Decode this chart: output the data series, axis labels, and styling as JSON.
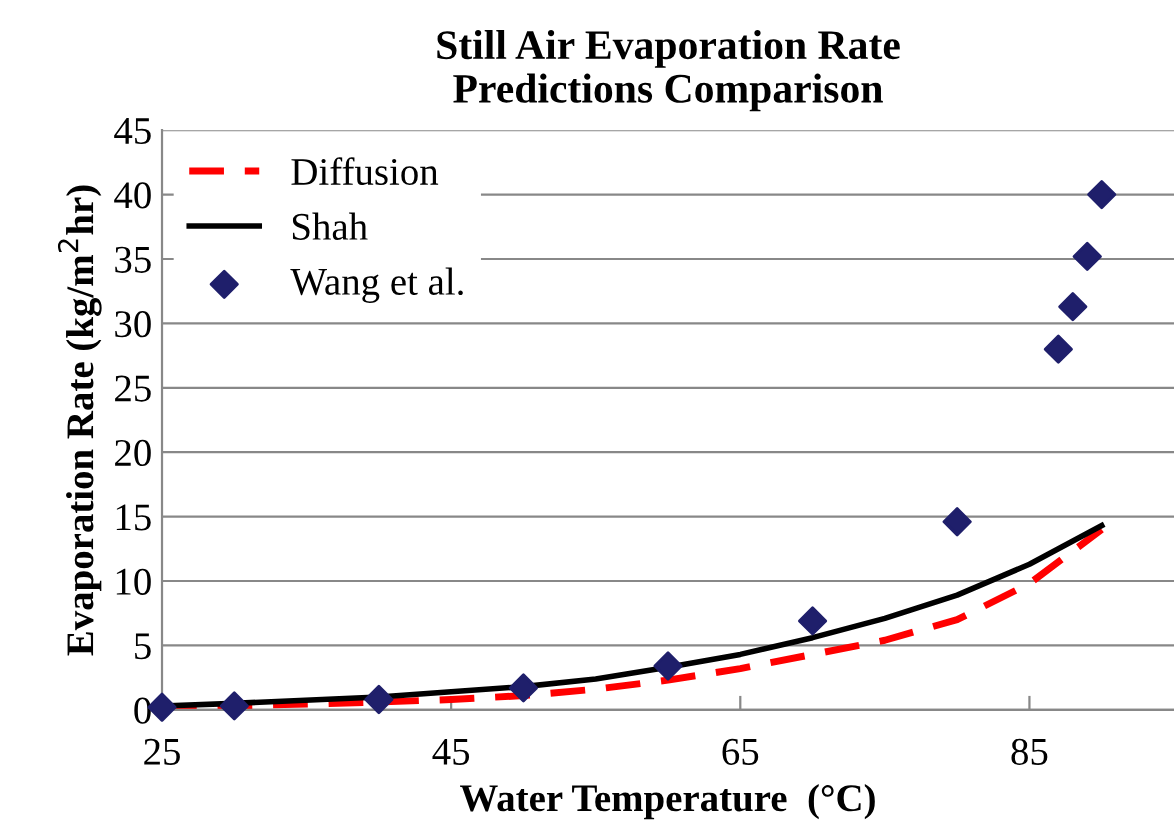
{
  "chart_data": {
    "type": "line",
    "title": "Still Air Evaporation Rate\nPredictions Comparison",
    "xlabel": "Water Temperature  (°C)",
    "ylabel": "Evaporation Rate (kg/m$^{2}$hr)",
    "xlim": [
      25,
      95
    ],
    "xticks": [
      25,
      45,
      65,
      85
    ],
    "ylim": [
      0,
      45
    ],
    "yticks": [
      0,
      5,
      10,
      15,
      20,
      25,
      30,
      35,
      40,
      45
    ],
    "grid": "y",
    "legend": "top left",
    "series": [
      {
        "name": "Diffusion",
        "color": "#ff0000",
        "line_style": "dashed",
        "marker": "none",
        "x": [
          25,
          30,
          40,
          45,
          50,
          55,
          60,
          65,
          70,
          75,
          80,
          85,
          90
        ],
        "values": [
          0.1,
          0.3,
          0.6,
          0.8,
          1.1,
          1.6,
          2.3,
          3.2,
          4.3,
          5.4,
          7.0,
          9.8,
          14.0
        ]
      },
      {
        "name": "Shah",
        "color": "#000000",
        "line_style": "solid",
        "marker": "none",
        "x": [
          25,
          30,
          40,
          45,
          50,
          55,
          60,
          65,
          70,
          75,
          80,
          85,
          90
        ],
        "values": [
          0.3,
          0.5,
          1.0,
          1.4,
          1.8,
          2.4,
          3.3,
          4.3,
          5.6,
          7.1,
          8.9,
          11.3,
          14.3
        ]
      },
      {
        "name": "Wang et al.",
        "type": "scatter",
        "color": "#1f1f6b",
        "marker": "diamond",
        "x": [
          25,
          30,
          40,
          50,
          60,
          70,
          80,
          87,
          88,
          89,
          90
        ],
        "values": [
          0.2,
          0.3,
          0.8,
          1.7,
          3.4,
          6.9,
          14.6,
          28.0,
          31.3,
          35.2,
          40.0
        ]
      }
    ]
  }
}
